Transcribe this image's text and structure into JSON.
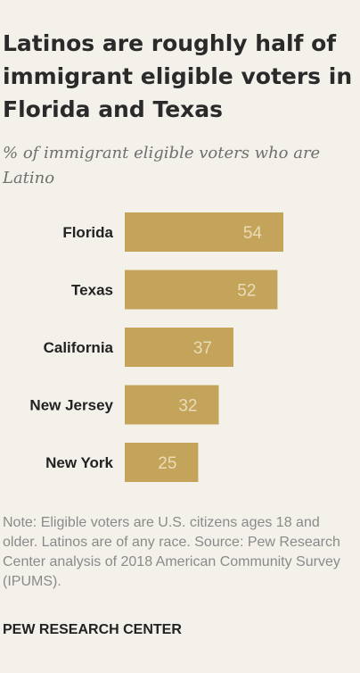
{
  "header": {
    "title": "Latinos are roughly half of immigrant eligible voters in Florida and Texas",
    "subtitle": "% of immigrant eligible voters who are Latino"
  },
  "chart_data": {
    "type": "bar",
    "orientation": "horizontal",
    "title": "Latinos are roughly half of immigrant eligible voters in Florida and Texas",
    "subtitle": "% of immigrant eligible voters who are Latino",
    "categories": [
      "Florida",
      "Texas",
      "California",
      "New Jersey",
      "New York"
    ],
    "values": [
      54,
      52,
      37,
      32,
      25
    ],
    "xlim": [
      0,
      54
    ],
    "bar_color": "#c4a45a",
    "label_color": "#e9dcb8",
    "grid": false,
    "legend": "none"
  },
  "footer": {
    "note": "Note: Eligible voters are U.S. citizens ages 18 and older. Latinos are of any race.",
    "source": "Source: Pew Research Center analysis of 2018 American Community Survey (IPUMS).",
    "org": "PEW RESEARCH CENTER"
  }
}
